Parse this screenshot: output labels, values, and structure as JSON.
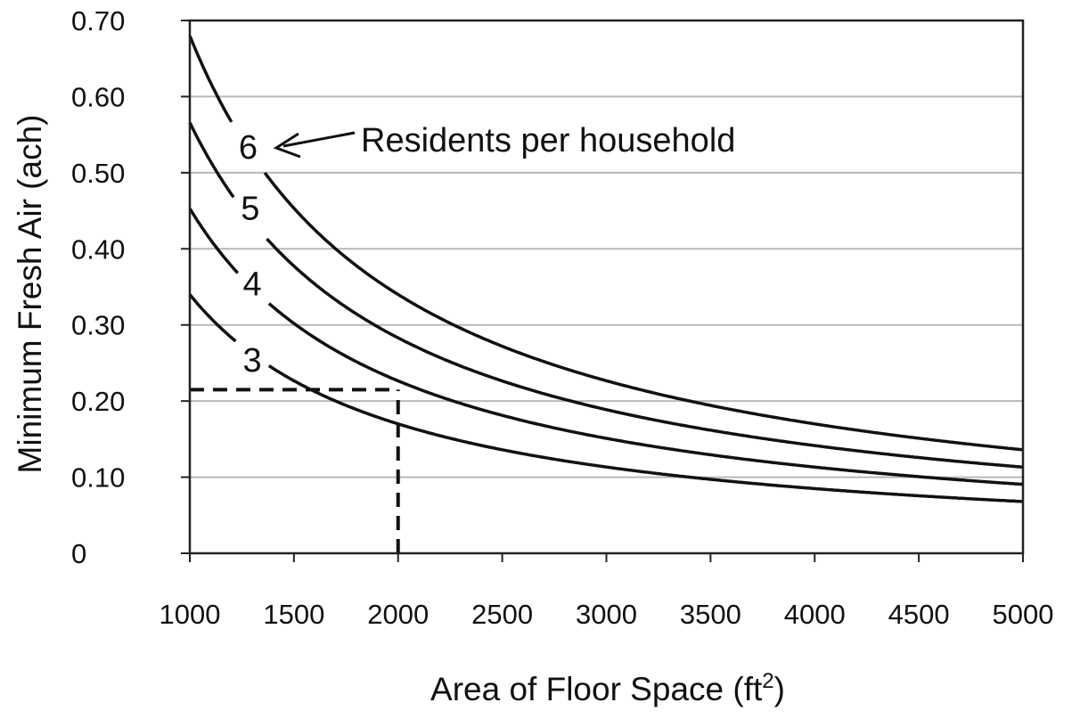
{
  "chart_data": {
    "type": "line",
    "title": "",
    "xlabel": "Area of Floor Space (ft",
    "xlabel_superscript": "2",
    "xlabel_suffix": ")",
    "ylabel": "Minimum Fresh Air (ach)",
    "xlim": [
      1000,
      5000
    ],
    "ylim": [
      0,
      0.7
    ],
    "x_ticks": [
      1000,
      1500,
      2000,
      2500,
      3000,
      3500,
      4000,
      4500,
      5000
    ],
    "x_tick_labels": [
      "1000",
      "1500",
      "2000",
      "2500",
      "3000",
      "3500",
      "4000",
      "4500",
      "5000"
    ],
    "y_ticks": [
      0,
      0.1,
      0.2,
      0.3,
      0.4,
      0.5,
      0.6,
      0.7
    ],
    "y_tick_labels": [
      "0",
      "0.10",
      "0.20",
      "0.30",
      "0.40",
      "0.50",
      "0.60",
      "0.70"
    ],
    "grid": "horizontal",
    "annotation": "Residents per household",
    "series": [
      {
        "name": "3",
        "x": [
          1000,
          1500,
          2000,
          2500,
          3000,
          3500,
          4000,
          4500,
          5000
        ],
        "values": [
          0.34,
          0.227,
          0.17,
          0.136,
          0.113,
          0.097,
          0.085,
          0.076,
          0.068
        ]
      },
      {
        "name": "4",
        "x": [
          1000,
          1500,
          2000,
          2500,
          3000,
          3500,
          4000,
          4500,
          5000
        ],
        "values": [
          0.453,
          0.302,
          0.227,
          0.181,
          0.151,
          0.129,
          0.113,
          0.101,
          0.091
        ]
      },
      {
        "name": "5",
        "x": [
          1000,
          1500,
          2000,
          2500,
          3000,
          3500,
          4000,
          4500,
          5000
        ],
        "values": [
          0.566,
          0.377,
          0.283,
          0.226,
          0.189,
          0.162,
          0.142,
          0.126,
          0.113
        ]
      },
      {
        "name": "6",
        "x": [
          1000,
          1500,
          2000,
          2500,
          3000,
          3500,
          4000,
          4500,
          5000
        ],
        "values": [
          0.68,
          0.453,
          0.34,
          0.272,
          0.227,
          0.194,
          0.17,
          0.151,
          0.136
        ]
      }
    ],
    "reference_lines": [
      {
        "type": "horizontal",
        "y": 0.215,
        "x_from": 1000,
        "x_to": 2000
      },
      {
        "type": "vertical",
        "x": 2000,
        "y_from": 0,
        "y_to": 0.215
      }
    ]
  }
}
